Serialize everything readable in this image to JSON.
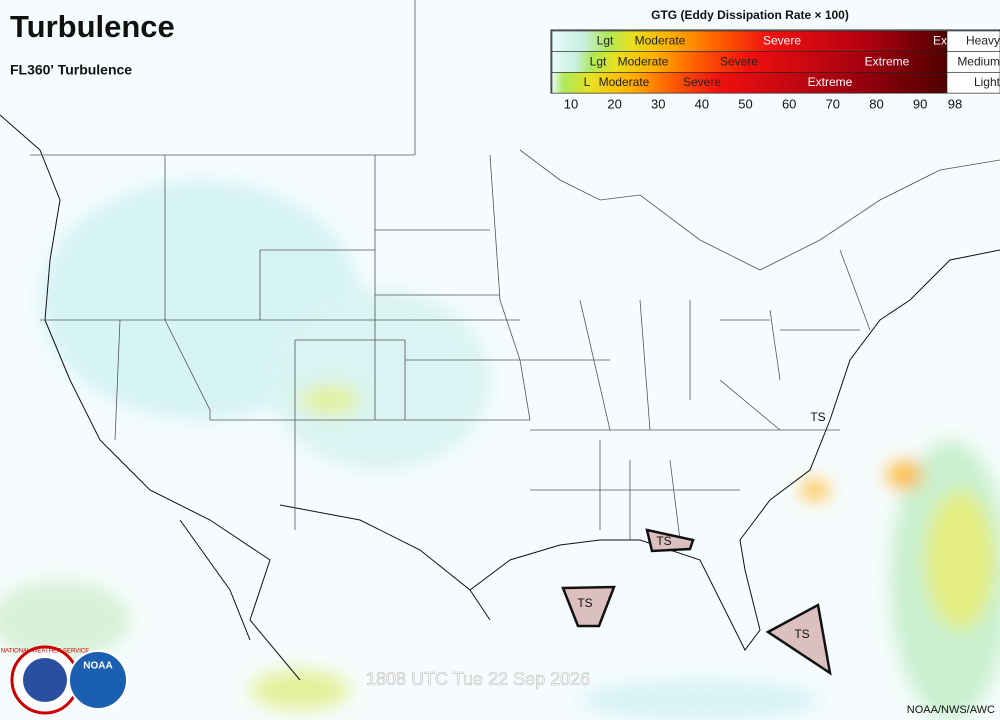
{
  "header": {
    "title": "Turbulence",
    "subtitle": "FL360' Turbulence"
  },
  "legend": {
    "title": "GTG (Eddy Dissipation Rate × 100)",
    "rows": [
      {
        "labels": [
          "Lgt",
          "Moderate",
          "Severe",
          "Ex"
        ],
        "aircraft": "Heavy"
      },
      {
        "labels": [
          "Lgt",
          "Moderate",
          "Severe",
          "Extreme"
        ],
        "aircraft": "Medium"
      },
      {
        "labels": [
          "L",
          "Moderate",
          "Severe",
          "Extreme"
        ],
        "aircraft": "Light"
      }
    ],
    "ticks": [
      10,
      20,
      30,
      40,
      50,
      60,
      70,
      80,
      90,
      98
    ]
  },
  "map": {
    "storms": [
      "TS",
      "TS",
      "TS",
      "TS"
    ],
    "timestamp": "1808 UTC Tue 22 Sep 2026",
    "credit": "NOAA/NWS/AWC",
    "logos": [
      "NATIONAL WEATHER SERVICE",
      "NOAA"
    ]
  }
}
